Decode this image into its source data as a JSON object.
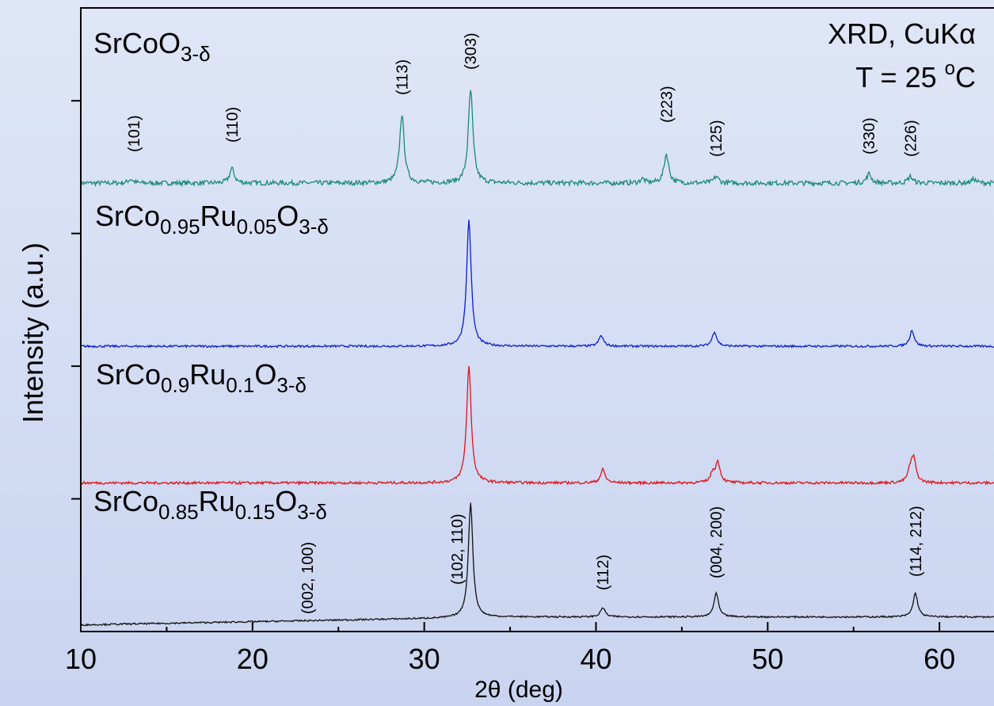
{
  "chart_data": {
    "type": "line",
    "title": "",
    "xlabel": "2θ (deg)",
    "ylabel": "Intensity (a.u.)",
    "xlim": [
      10,
      63.5
    ],
    "x_ticks": [
      10,
      20,
      30,
      40,
      50,
      60
    ],
    "x_tick_labels": [
      "10",
      "20",
      "30",
      "40",
      "50",
      "60"
    ],
    "ylim": [
      0,
      4.7
    ],
    "y_ticks": [
      1,
      2,
      3,
      4
    ],
    "grid": false,
    "legend": "none",
    "annotations": [
      {
        "lines": [
          "XRD, CuKα",
          "T = 25 °C"
        ]
      }
    ],
    "series": [
      {
        "name_parts": [
          [
            "SrCoO",
            "n"
          ],
          [
            "3-δ",
            "sub"
          ]
        ],
        "color": "#1a8a7a",
        "baseline": 3.38,
        "noise": 0.018,
        "peaks": [
          [
            12.9,
            0.03
          ],
          [
            18.8,
            0.11
          ],
          [
            28.7,
            0.52
          ],
          [
            32.7,
            0.7
          ],
          [
            42.7,
            0.03
          ],
          [
            44.1,
            0.22
          ],
          [
            47.0,
            0.05
          ],
          [
            55.9,
            0.07
          ],
          [
            58.3,
            0.05
          ],
          [
            62.0,
            0.03
          ]
        ],
        "hkl": [
          {
            "x": 13.1,
            "label": "(101)"
          },
          {
            "x": 18.8,
            "label": "(110)"
          },
          {
            "x": 28.7,
            "label": "(113)"
          },
          {
            "x": 32.7,
            "label": "(303)"
          },
          {
            "x": 44.1,
            "label": "(223)"
          },
          {
            "x": 47.0,
            "label": "(125)"
          },
          {
            "x": 55.9,
            "label": "(330)"
          },
          {
            "x": 58.3,
            "label": "(226)"
          }
        ]
      },
      {
        "name_parts": [
          [
            "SrCo",
            "n"
          ],
          [
            "0.95",
            "sub"
          ],
          [
            "Ru",
            "n"
          ],
          [
            "0.05",
            "sub"
          ],
          [
            "O",
            "n"
          ],
          [
            "3-δ",
            "sub"
          ]
        ],
        "color": "#0b1fd0",
        "baseline": 2.15,
        "noise": 0.008,
        "peaks": [
          [
            32.6,
            0.95
          ],
          [
            40.3,
            0.08
          ],
          [
            46.9,
            0.11
          ],
          [
            58.4,
            0.12
          ]
        ],
        "hkl": []
      },
      {
        "name_parts": [
          [
            "SrCo",
            "n"
          ],
          [
            "0.9",
            "sub"
          ],
          [
            "Ru",
            "n"
          ],
          [
            "0.1",
            "sub"
          ],
          [
            "O",
            "n"
          ],
          [
            "3-δ",
            "sub"
          ]
        ],
        "color": "#e0131a",
        "baseline": 1.12,
        "noise": 0.01,
        "peaks": [
          [
            32.6,
            0.88
          ],
          [
            40.4,
            0.1
          ],
          [
            46.8,
            0.07
          ],
          [
            47.1,
            0.15
          ],
          [
            58.3,
            0.09
          ],
          [
            58.5,
            0.17
          ]
        ],
        "hkl": []
      },
      {
        "name_parts": [
          [
            "SrCo",
            "n"
          ],
          [
            "0.85",
            "sub"
          ],
          [
            "Ru",
            "n"
          ],
          [
            "0.15",
            "sub"
          ],
          [
            "O",
            "n"
          ],
          [
            "3-δ",
            "sub"
          ]
        ],
        "color": "#111111",
        "baseline": 0.05,
        "noise": 0.006,
        "peaks": [
          [
            32.7,
            0.86
          ],
          [
            40.4,
            0.07
          ],
          [
            47.0,
            0.18
          ],
          [
            58.6,
            0.18
          ]
        ],
        "hkl": [
          {
            "x": 23.2,
            "label": "(002, 100)"
          },
          {
            "x": 31.9,
            "label": "(102, 110)"
          },
          {
            "x": 40.4,
            "label": "(112)"
          },
          {
            "x": 47.0,
            "label": "(004, 200)"
          },
          {
            "x": 58.6,
            "label": "(114, 212)"
          }
        ]
      }
    ]
  }
}
